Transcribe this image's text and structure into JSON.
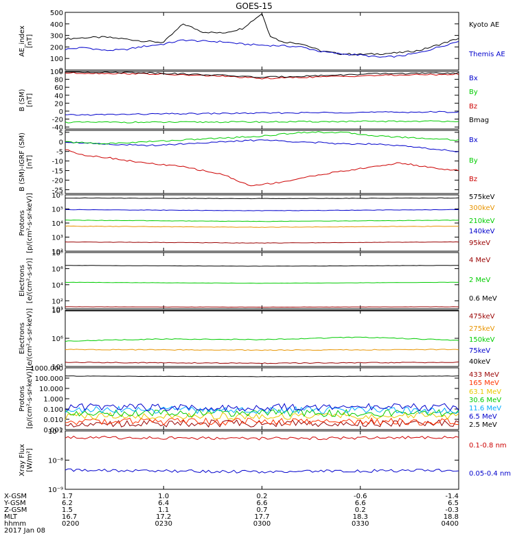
{
  "title": "GOES-15",
  "chart_data": [
    {
      "type": "line",
      "ylabel": [
        "AE_index",
        "[nT]"
      ],
      "scale": "linear",
      "ylim": [
        0,
        500
      ],
      "yticks": [
        0,
        100,
        200,
        300,
        400,
        500
      ],
      "ytick_labels": [
        "0",
        "100",
        "200",
        "300",
        "400",
        "500"
      ],
      "xlim": [
        0,
        1
      ],
      "series": [
        {
          "name": "Kyoto AE",
          "color": "#000000",
          "x": [
            0,
            0.05,
            0.1,
            0.15,
            0.2,
            0.25,
            0.3,
            0.35,
            0.4,
            0.45,
            0.5,
            0.52,
            0.55,
            0.6,
            0.65,
            0.7,
            0.75,
            0.8,
            0.85,
            0.9,
            0.95,
            1.0
          ],
          "y": [
            270,
            280,
            285,
            270,
            250,
            240,
            400,
            330,
            320,
            360,
            490,
            300,
            245,
            230,
            165,
            140,
            135,
            140,
            150,
            170,
            220,
            275
          ]
        },
        {
          "name": "Themis AE",
          "color": "#0000cc",
          "x": [
            0,
            0.05,
            0.1,
            0.15,
            0.2,
            0.25,
            0.3,
            0.35,
            0.4,
            0.45,
            0.5,
            0.55,
            0.6,
            0.65,
            0.7,
            0.75,
            0.8,
            0.85,
            0.9,
            0.95,
            1.0
          ],
          "y": [
            180,
            195,
            170,
            175,
            205,
            225,
            260,
            250,
            245,
            225,
            215,
            210,
            200,
            160,
            140,
            130,
            110,
            120,
            150,
            200,
            250
          ]
        }
      ],
      "legend_placement": "right"
    },
    {
      "type": "line",
      "ylabel": [
        "B (SM)",
        "[nT]"
      ],
      "scale": "linear",
      "ylim": [
        -45,
        100
      ],
      "yticks": [
        -40,
        -20,
        0,
        20,
        40,
        60,
        80,
        100
      ],
      "ytick_labels": [
        "-40",
        "-20",
        "0",
        "20",
        "40",
        "60",
        "80",
        "100"
      ],
      "xlim": [
        0,
        1
      ],
      "series": [
        {
          "name": "Bx",
          "color": "#0000cc",
          "x": [
            0,
            0.25,
            0.5,
            0.75,
            1.0
          ],
          "y": [
            -10,
            -7,
            -5,
            -3,
            -2
          ]
        },
        {
          "name": "By",
          "color": "#00cc00",
          "x": [
            0,
            0.25,
            0.5,
            0.75,
            1.0
          ],
          "y": [
            -28,
            -28,
            -27,
            -26,
            -25
          ]
        },
        {
          "name": "Bz",
          "color": "#cc0000",
          "x": [
            0,
            0.2,
            0.4,
            0.5,
            0.6,
            0.8,
            1.0
          ],
          "y": [
            96,
            94,
            88,
            82,
            85,
            90,
            93
          ]
        },
        {
          "name": "Bmag",
          "color": "#000000",
          "x": [
            0,
            0.2,
            0.4,
            0.5,
            0.6,
            0.8,
            1.0
          ],
          "y": [
            99,
            97,
            90,
            85,
            88,
            94,
            96
          ]
        }
      ],
      "legend_placement": "right"
    },
    {
      "type": "line",
      "ylabel": [
        "B (SM)-IGRF (SM)",
        "[nT]"
      ],
      "scale": "linear",
      "ylim": [
        -27,
        6
      ],
      "yticks": [
        -25,
        -20,
        -15,
        -10,
        -5,
        0,
        5
      ],
      "ytick_labels": [
        "-25",
        "-20",
        "-15",
        "-10",
        "-5",
        "0",
        "5"
      ],
      "xlim": [
        0,
        1
      ],
      "series": [
        {
          "name": "Bx",
          "color": "#0000cc",
          "x": [
            0,
            0.1,
            0.2,
            0.3,
            0.4,
            0.5,
            0.6,
            0.7,
            0.8,
            0.9,
            1.0
          ],
          "y": [
            0,
            -1,
            -2,
            -1,
            0,
            1,
            0,
            -1,
            -1,
            -3,
            -5
          ]
        },
        {
          "name": "By",
          "color": "#00cc00",
          "x": [
            0,
            0.1,
            0.2,
            0.3,
            0.4,
            0.5,
            0.6,
            0.7,
            0.8,
            0.9,
            1.0
          ],
          "y": [
            0,
            -1,
            0,
            1,
            2,
            3,
            5,
            5,
            3,
            2,
            1
          ]
        },
        {
          "name": "Bz",
          "color": "#cc0000",
          "x": [
            0,
            0.05,
            0.1,
            0.2,
            0.3,
            0.4,
            0.47,
            0.55,
            0.65,
            0.75,
            0.85,
            0.95,
            1.0
          ],
          "y": [
            -4,
            -7,
            -8,
            -11,
            -13,
            -17,
            -23,
            -21,
            -17,
            -14,
            -11,
            -14,
            -15
          ]
        }
      ],
      "legend_placement": "right"
    },
    {
      "type": "line",
      "ylabel": [
        "Protons",
        "[p/(cm²-s-sr-keV)]"
      ],
      "scale": "log",
      "ylim": [
        100,
        1000000
      ],
      "yticks": [
        100,
        1000,
        10000,
        100000,
        1000000
      ],
      "ytick_labels": [
        "10²",
        "10³",
        "10⁴",
        "10⁵",
        "10⁶"
      ],
      "xlim": [
        0,
        1
      ],
      "series": [
        {
          "name": "575keV",
          "color": "#000000",
          "x": [
            0,
            0.5,
            1.0
          ],
          "y": [
            600000,
            550000,
            600000
          ]
        },
        {
          "name": "300keV",
          "color": "#e89400",
          "x": [
            0,
            0.5,
            1.0
          ],
          "y": [
            6000,
            5000,
            6000
          ]
        },
        {
          "name": "210keV",
          "color": "#00cc00",
          "x": [
            0,
            0.5,
            1.0
          ],
          "y": [
            16000,
            13000,
            16000
          ]
        },
        {
          "name": "140keV",
          "color": "#0000cc",
          "x": [
            0,
            0.5,
            1.0
          ],
          "y": [
            90000,
            75000,
            90000
          ]
        },
        {
          "name": "95keV",
          "color": "#990000",
          "x": [
            0,
            0.5,
            1.0
          ],
          "y": [
            450,
            380,
            450
          ]
        }
      ],
      "legend_placement": "right"
    },
    {
      "type": "line",
      "ylabel": [
        "Electrons",
        "[e/(cm²-s-sr)]"
      ],
      "scale": "log",
      "ylim": [
        10,
        100000000
      ],
      "yticks": [
        10,
        100,
        10000,
        1000000,
        100000000
      ],
      "ytick_labels": [
        "10¹",
        "10²",
        "10⁴",
        "10⁶",
        "10⁸"
      ],
      "xlim": [
        0,
        1
      ],
      "series": [
        {
          "name": "4 MeV",
          "color": "#990000",
          "x": [
            0,
            0.5,
            1.0
          ],
          "y": [
            18,
            16,
            18
          ]
        },
        {
          "name": "2 MeV",
          "color": "#00cc00",
          "x": [
            0,
            0.5,
            1.0
          ],
          "y": [
            20000,
            15000,
            20000
          ]
        },
        {
          "name": "0.6 MeV",
          "color": "#000000",
          "x": [
            0,
            0.5,
            1.0
          ],
          "y": [
            2500000,
            2000000,
            2500000
          ]
        }
      ],
      "legend_placement": "right"
    },
    {
      "type": "line",
      "ylabel": [
        "Electrons",
        "[e/(cm²-s-sr-keV)]"
      ],
      "scale": "log",
      "ylim": [
        100000,
        10000000
      ],
      "yticks": [
        100000,
        1000000,
        10000000
      ],
      "ytick_labels": [
        "10⁵",
        "10⁶",
        "10⁷"
      ],
      "xlim": [
        0,
        1
      ],
      "series": [
        {
          "name": "475keV",
          "color": "#990000",
          "x": [
            0,
            0.5,
            1.0
          ],
          "y": [
            140000,
            130000,
            140000
          ]
        },
        {
          "name": "275keV",
          "color": "#e89400",
          "x": [
            0,
            0.5,
            1.0
          ],
          "y": [
            400000,
            380000,
            400000
          ]
        },
        {
          "name": "150keV",
          "color": "#00cc00",
          "x": [
            0,
            0.25,
            0.5,
            0.75,
            1.0
          ],
          "y": [
            800000,
            950000,
            900000,
            1100000,
            850000
          ]
        },
        {
          "name": "75keV",
          "color": "#0000cc",
          "x": [
            0,
            0.5,
            1.0
          ],
          "y": [
            12000000,
            11000000,
            12000000
          ]
        },
        {
          "name": "40keV",
          "color": "#000000",
          "x": [
            0,
            0.5,
            1.0
          ],
          "y": [
            14000000,
            13000000,
            14000000
          ]
        }
      ],
      "legend_placement": "right"
    },
    {
      "type": "line",
      "ylabel": [
        "Protons",
        "[p/(cm²-s-sr-keV)]"
      ],
      "scale": "log",
      "ylim": [
        0.001,
        1000
      ],
      "yticks": [
        0.001,
        0.01,
        0.1,
        1,
        10,
        100,
        1000
      ],
      "ytick_labels": [
        "0.001",
        "0.010",
        "0.100",
        "1.000",
        "10.000",
        "100.000",
        "1000.000"
      ],
      "xlim": [
        0,
        1
      ],
      "series": [
        {
          "name": "433 MeV",
          "color": "#990000",
          "x": [
            0,
            0.5,
            1.0
          ],
          "y": [
            0.004,
            0.004,
            0.004
          ]
        },
        {
          "name": "165 MeV",
          "color": "#ff3300",
          "x": [
            0,
            0.5,
            1.0
          ],
          "y": [
            0.006,
            0.006,
            0.006
          ]
        },
        {
          "name": "63.1 MeV",
          "color": "#e8c800",
          "x": [
            0,
            0.5,
            1.0
          ],
          "y": [
            0.02,
            0.02,
            0.02
          ]
        },
        {
          "name": "30.6 MeV",
          "color": "#00cc00",
          "x": [
            0,
            0.5,
            1.0
          ],
          "y": [
            0.04,
            0.04,
            0.04
          ]
        },
        {
          "name": "11.6 MeV",
          "color": "#00aaff",
          "x": [
            0,
            0.5,
            1.0
          ],
          "y": [
            0.08,
            0.08,
            0.08
          ]
        },
        {
          "name": "6.5 MeV",
          "color": "#0000cc",
          "x": [
            0,
            0.5,
            1.0
          ],
          "y": [
            0.15,
            0.15,
            0.15
          ]
        },
        {
          "name": "2.5 MeV",
          "color": "#000000",
          "x": [
            0,
            0.5,
            1.0
          ],
          "y": [
            160,
            140,
            160
          ]
        }
      ],
      "legend_placement": "right"
    },
    {
      "type": "line",
      "ylabel": [
        "Xray Flux",
        "[W/m²]"
      ],
      "scale": "log",
      "ylim": [
        1e-09,
        1e-07
      ],
      "yticks": [
        1e-09,
        1e-08,
        1e-07
      ],
      "ytick_labels": [
        "10⁻⁹",
        "10⁻⁸",
        "10⁻⁷"
      ],
      "xlim": [
        0,
        1
      ],
      "series": [
        {
          "name": "0.1-0.8 nm",
          "color": "#cc0000",
          "x": [
            0,
            0.5,
            1.0
          ],
          "y": [
            6e-08,
            5.5e-08,
            6e-08
          ]
        },
        {
          "name": "0.05-0.4 nm",
          "color": "#0000cc",
          "x": [
            0,
            0.5,
            1.0
          ],
          "y": [
            4.5e-09,
            4e-09,
            4.5e-09
          ]
        }
      ],
      "legend_placement": "right"
    }
  ],
  "x_axis": {
    "tick_positions": [
      0,
      0.25,
      0.5,
      0.75,
      1.0
    ],
    "rows": [
      {
        "label": "X-GSM",
        "values": [
          "1.7",
          "1.0",
          "0.2",
          "-0.6",
          "-1.4"
        ]
      },
      {
        "label": "Y-GSM",
        "values": [
          "6.2",
          "6.4",
          "6.6",
          "6.6",
          "6.5"
        ]
      },
      {
        "label": "Z-GSM",
        "values": [
          "1.5",
          "1.1",
          "0.7",
          "0.2",
          "-0.3"
        ]
      },
      {
        "label": "MLT",
        "values": [
          "16.7",
          "17.2",
          "17.7",
          "18.3",
          "18.8"
        ]
      },
      {
        "label": "hhmm",
        "values": [
          "0200",
          "0230",
          "0300",
          "0330",
          "0400"
        ]
      }
    ],
    "date": "2017 Jan 08"
  }
}
